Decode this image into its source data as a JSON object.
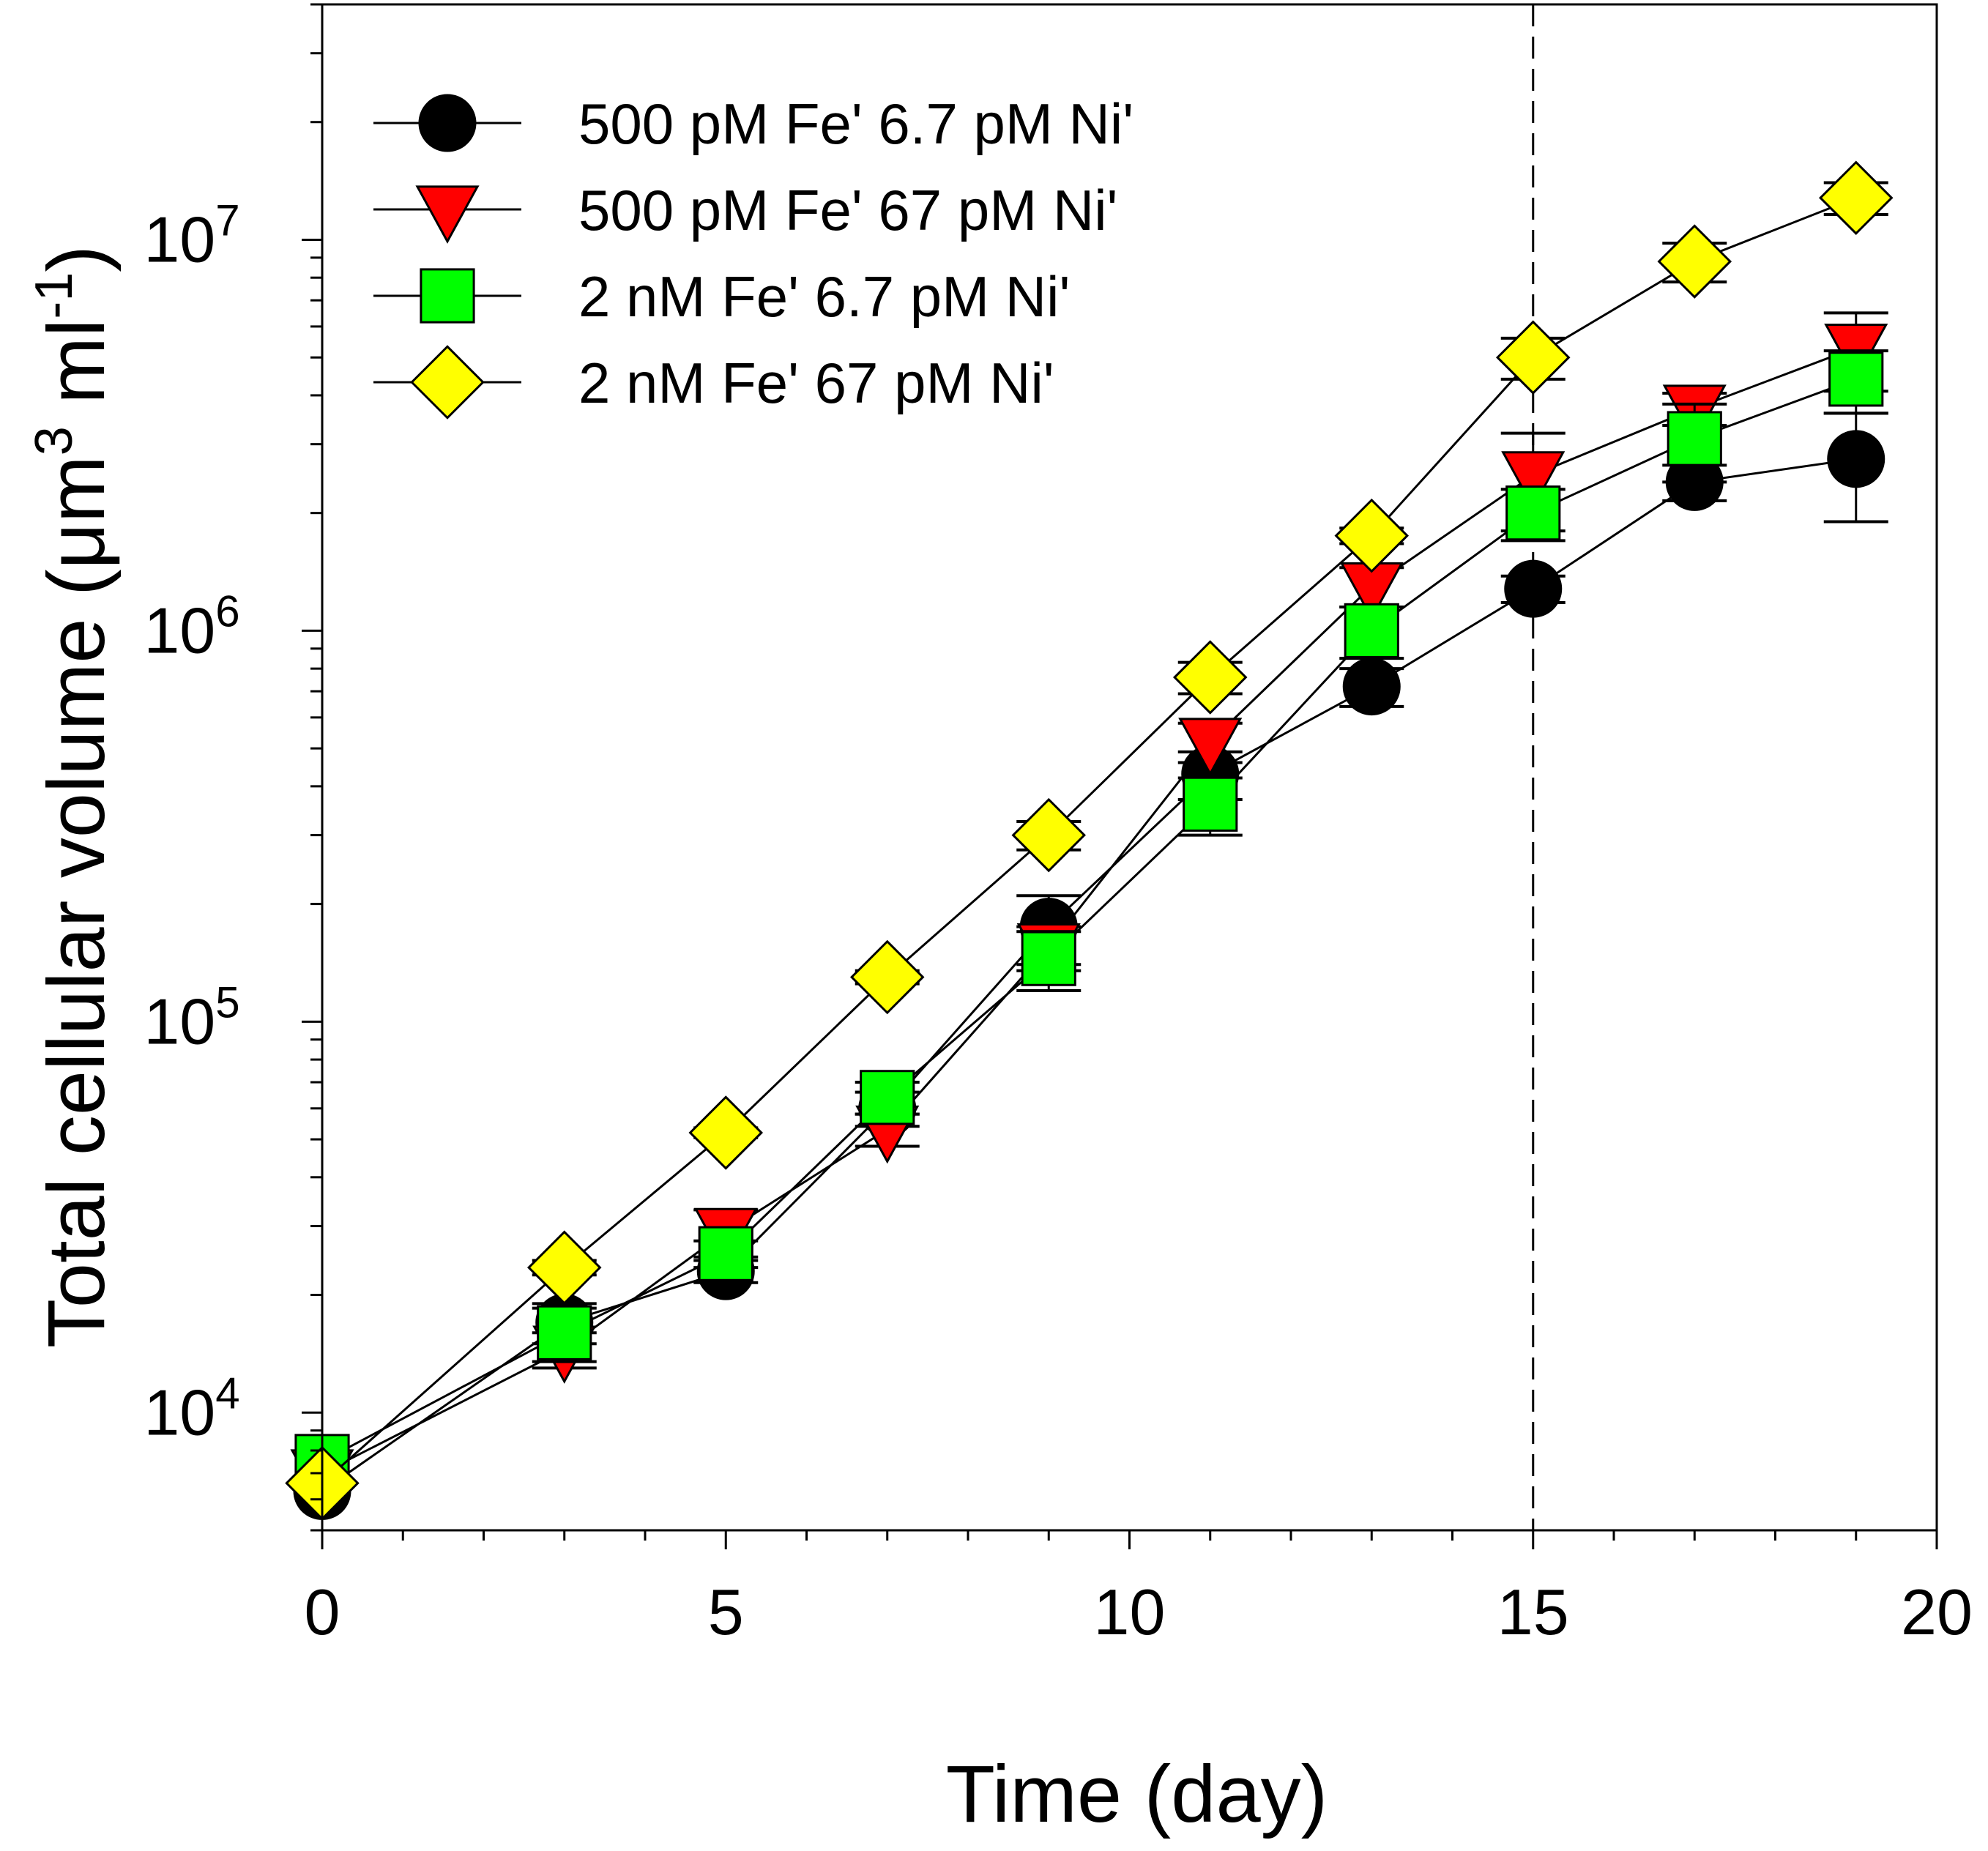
{
  "chart_data": {
    "type": "line",
    "title": "",
    "xlabel": "Time (day)",
    "ylabel": {
      "main": "Total cellular volume (μm",
      "sup1": "3",
      "mid": " ml",
      "sup2": "-1",
      "end": ")"
    },
    "y_scale": "log",
    "xlim": [
      0,
      20
    ],
    "ylim": [
      5000,
      40000000
    ],
    "x_ticks": [
      0,
      5,
      10,
      15,
      20
    ],
    "x_tick_labels": [
      "0",
      "5",
      "10",
      "15",
      "20"
    ],
    "y_ticks": [
      10000,
      100000,
      1000000,
      10000000
    ],
    "y_tick_labels": [
      {
        "base": "10",
        "exp": "4"
      },
      {
        "base": "10",
        "exp": "5"
      },
      {
        "base": "10",
        "exp": "6"
      },
      {
        "base": "10",
        "exp": "7"
      }
    ],
    "reference_line": {
      "x": 15,
      "style": "dashed"
    },
    "legend_position": "top-left",
    "series": [
      {
        "name": "500 pM Fe' 6.7 pM Ni'",
        "marker": "circle",
        "color": "#000000",
        "x": [
          0,
          3,
          5,
          7,
          9,
          11,
          13,
          15,
          17,
          19
        ],
        "y": [
          6300,
          17000,
          23000,
          60000,
          175000,
          430000,
          720000,
          1280000,
          2400000,
          2750000
        ],
        "err": [
          0,
          2000,
          1500,
          6000,
          35000,
          60000,
          80000,
          100000,
          250000,
          850000
        ]
      },
      {
        "name": "500 pM Fe' 67 pM Ni'",
        "marker": "triangle-down",
        "color": "#ff0000",
        "x": [
          0,
          3,
          5,
          7,
          9,
          11,
          13,
          15,
          17,
          19
        ],
        "y": [
          7000,
          14500,
          29000,
          53000,
          155000,
          520000,
          1300000,
          2500000,
          3700000,
          5300000
        ],
        "err": [
          0,
          1500,
          4000,
          5000,
          20000,
          60000,
          150000,
          700000,
          350000,
          1200000
        ]
      },
      {
        "name": "2 nM Fe' 6.7 pM Ni'",
        "marker": "square",
        "color": "#00ff00",
        "x": [
          0,
          3,
          5,
          7,
          9,
          11,
          13,
          15,
          17,
          19
        ],
        "y": [
          7500,
          16000,
          25500,
          64000,
          145000,
          360000,
          1000000,
          2000000,
          3100000,
          4400000
        ],
        "err": [
          0,
          2500,
          2000,
          6000,
          25000,
          60000,
          150000,
          300000,
          700000,
          800000
        ]
      },
      {
        "name": "2 nM Fe' 67 pM Ni'",
        "marker": "diamond",
        "color": "#ffff00",
        "x": [
          0,
          3,
          5,
          7,
          9,
          11,
          13,
          15,
          17,
          19
        ],
        "y": [
          6600,
          23500,
          52000,
          130000,
          300000,
          760000,
          1750000,
          5000000,
          8800000,
          12800000
        ],
        "err": [
          0,
          1000,
          1500,
          5000,
          25000,
          70000,
          80000,
          600000,
          1000000,
          1200000
        ]
      }
    ]
  }
}
